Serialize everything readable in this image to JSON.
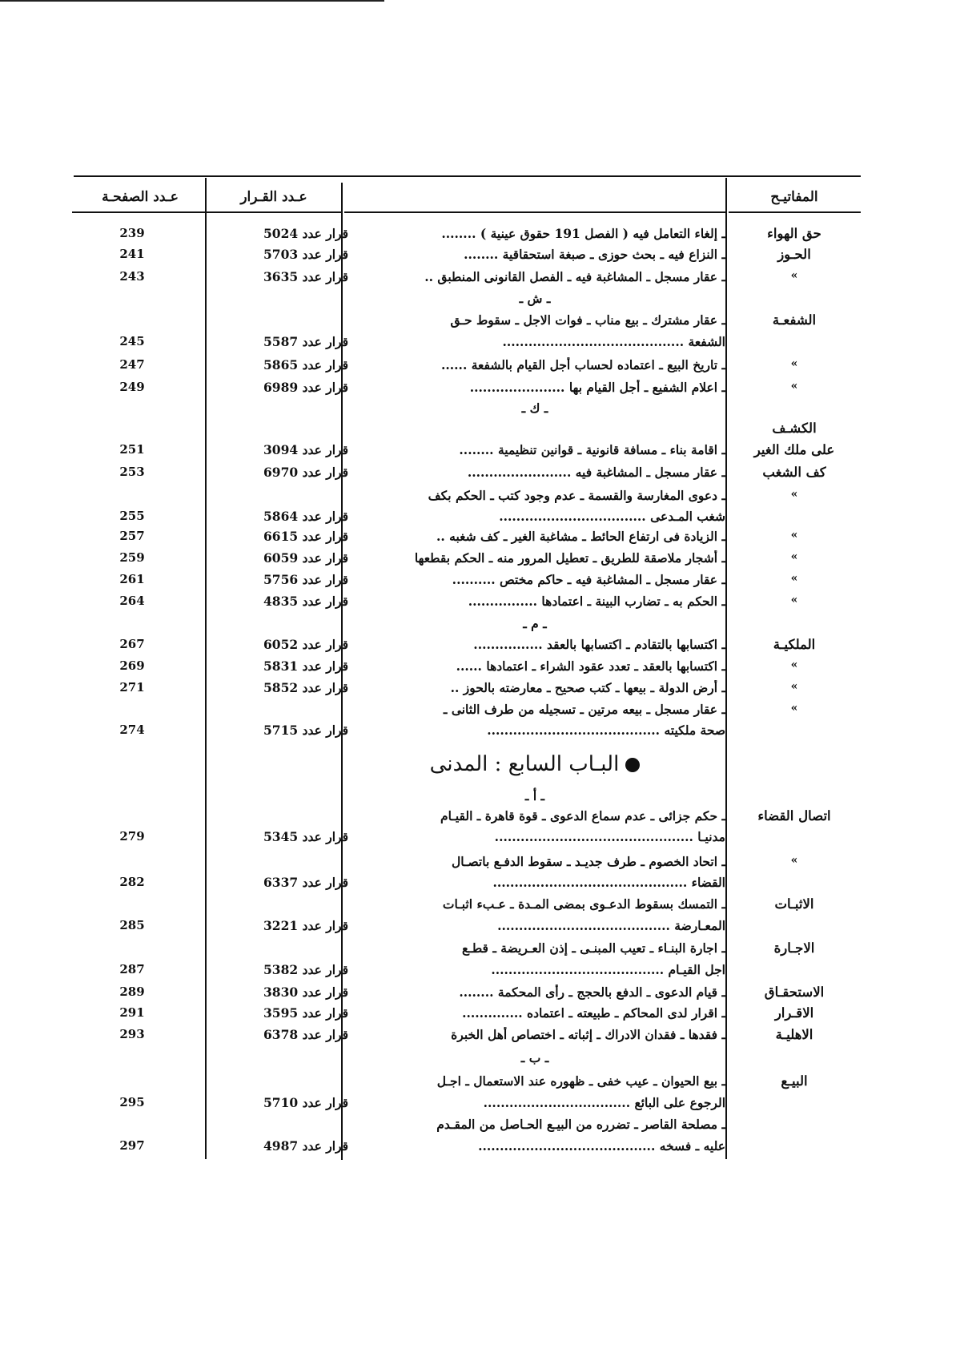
{
  "header": {
    "page_col": "عـدد الصفحـة",
    "decision_col": "عـدد القـرار",
    "description_col": "",
    "keywords_col": "المفاتيـح"
  },
  "rows": [
    {
      "kw": "حق الهواء",
      "desc": "ـ إلغاء التعامل فيه ( الفصل 191 حقوق عينية ) ........",
      "dec": "قرار عدد 5024",
      "pg": "239"
    },
    {
      "kw": "الحـوز",
      "desc": "ـ النزاع فيه ـ بحث حوزى ـ صبغة استحقاقية ........",
      "dec": "قرار عدد 5703",
      "pg": "241"
    },
    {
      "kw": "»",
      "desc": "ـ عقار مسجل ـ المشاغبة فيه ـ الفصل القانونى المنطبق ..",
      "dec": "قرار عدد 3635",
      "pg": "243"
    },
    {
      "letter": "ـ ش ـ"
    },
    {
      "kw": "الشفعـة",
      "desc": "ـ عقار مشترك ـ بيع مناب ـ فوات الاجل ـ سقوط حـق"
    },
    {
      "desc": "الشفعة ..........................................",
      "dec": "قرار عدد 5587",
      "pg": "245"
    },
    {
      "kw": "»",
      "desc": "ـ تاريخ البيع ـ اعتماده لحساب أجل القيام بالشفعة ......",
      "dec": "قرار عدد 5865",
      "pg": "247"
    },
    {
      "kw": "»",
      "desc": "ـ اعلام الشفيع ـ أجل القيام بها ......................",
      "dec": "قرار عدد 6989",
      "pg": "249"
    },
    {
      "letter": "ـ ك ـ"
    },
    {
      "kw": "الكشـف"
    },
    {
      "kw": "على ملك الغير",
      "desc": "ـ اقامة بناء ـ مسافة قانونية ـ قوانين تنظيمية ........",
      "dec": "قرار عدد 3094",
      "pg": "251"
    },
    {
      "kw": "كف الشغب",
      "desc": "ـ عقار مسجل ـ المشاغبة فيه ........................",
      "dec": "قرار عدد 6970",
      "pg": "253"
    },
    {
      "kw": "»",
      "desc": "ـ دعوى المغارسة والقسمة ـ عدم وجود كتب ـ الحكم بكف"
    },
    {
      "desc": "شغب المـدعى ..................................",
      "dec": "قرار عدد 5864",
      "pg": "255"
    },
    {
      "kw": "»",
      "desc": "ـ الزيادة فى ارتفاع الحائط ـ مشاغبة الغير ـ كف شغبه ..",
      "dec": "قرار عدد 6615",
      "pg": "257"
    },
    {
      "kw": "»",
      "desc": "ـ أشجار ملاصقة للطريق ـ تعطيل المرور منه ـ الحكم بقطعها",
      "dec": "قرار عدد 6059",
      "pg": "259"
    },
    {
      "kw": "»",
      "desc": "ـ عقار مسجل ـ المشاغبة فيه ـ حاكم مختص ..........",
      "dec": "قرار عدد 5756",
      "pg": "261"
    },
    {
      "kw": "»",
      "desc": "ـ الحكم به ـ تضارب البينة ـ اعتمادها ................",
      "dec": "قرار عدد 4835",
      "pg": "264"
    },
    {
      "letter": "ـ م ـ"
    },
    {
      "kw": "الملكيـة",
      "desc": "ـ اكتسابها بالتقادم ـ اكتسابها بالعقد ................",
      "dec": "قرار عدد 6052",
      "pg": "267"
    },
    {
      "kw": "»",
      "desc": "ـ اكتسابها بالعقد ـ تعدد عقود الشراء ـ اعتمادها ......",
      "dec": "قرار عدد 5831",
      "pg": "269"
    },
    {
      "kw": "»",
      "desc": "ـ أرض الدولة ـ بيعها ـ كتب صحيح ـ معارضته بالحوز ..",
      "dec": "قرار عدد 5852",
      "pg": "271"
    },
    {
      "kw": "»",
      "desc": "ـ عقار مسجل ـ بيعه مرتين ـ تسجيله من طرف الثانى ـ"
    },
    {
      "desc": "صحة ملكيته ........................................",
      "dec": "قرار عدد 5715",
      "pg": "274"
    },
    {
      "chapter": "البـاب السابع : المدنى"
    },
    {
      "letter": "ـ أ ـ"
    },
    {
      "kw": "اتصال القضاء",
      "desc": "ـ حكم جزائى ـ عدم سماع الدعوى ـ قوة قاهرة ـ القيـام"
    },
    {
      "desc": "مدنيـا ..............................................",
      "dec": "قرار عدد 5345",
      "pg": "279"
    },
    {
      "kw": "»",
      "desc": "ـ اتحاد الخصوم ـ طرف جديـد ـ سقوط الدفـع باتصـال"
    },
    {
      "desc": "القضاء .............................................",
      "dec": "قرار عدد 6337",
      "pg": "282"
    },
    {
      "kw": "الاثبـات",
      "desc": "ـ التمسك بسقوط الدعـوى بمضى المـدة ـ عـبء اثبـات"
    },
    {
      "desc": "المعـارضة ........................................",
      "dec": "قرار عدد 3221",
      "pg": "285"
    },
    {
      "kw": "الاجـارة",
      "desc": "ـ اجارة البنـاء ـ تعيب المبنـى ـ إذن العـريضة ـ قطـع"
    },
    {
      "desc": "اجل القيـام ........................................",
      "dec": "قرار عدد 5382",
      "pg": "287"
    },
    {
      "kw": "الاستحقـاق",
      "desc": "ـ قيام الدعوى ـ الدفع بالحجج ـ رأى المحكمة ........",
      "dec": "قرار عدد 3830",
      "pg": "289"
    },
    {
      "kw": "الاقـرار",
      "desc": "ـ اقرار لدى المحاكم ـ طبيعته ـ اعتماده ..............",
      "dec": "قرار عدد 3595",
      "pg": "291"
    },
    {
      "kw": "الاهليـة",
      "desc": "ـ فقدها ـ فقدان الادراك ـ إثباته ـ اختصاص أهل الخبرة",
      "dec": "قرار عدد 6378",
      "pg": "293"
    },
    {
      "letter": "ـ ب ـ"
    },
    {
      "kw": "البيـع",
      "desc": "ـ بيع الحيوان ـ عيب خفى ـ ظهوره عند الاستعمال ـ اجـل"
    },
    {
      "desc": "الرجوع على البائع ..................................",
      "dec": "قرار عدد 5710",
      "pg": "295"
    },
    {
      "desc": "ـ مصلحة القاصر ـ تضرره من البيـع الحـاصل من المقـدم"
    },
    {
      "desc": "عليه ـ فسخه .........................................",
      "dec": "قرار عدد 4987",
      "pg": "297"
    }
  ]
}
